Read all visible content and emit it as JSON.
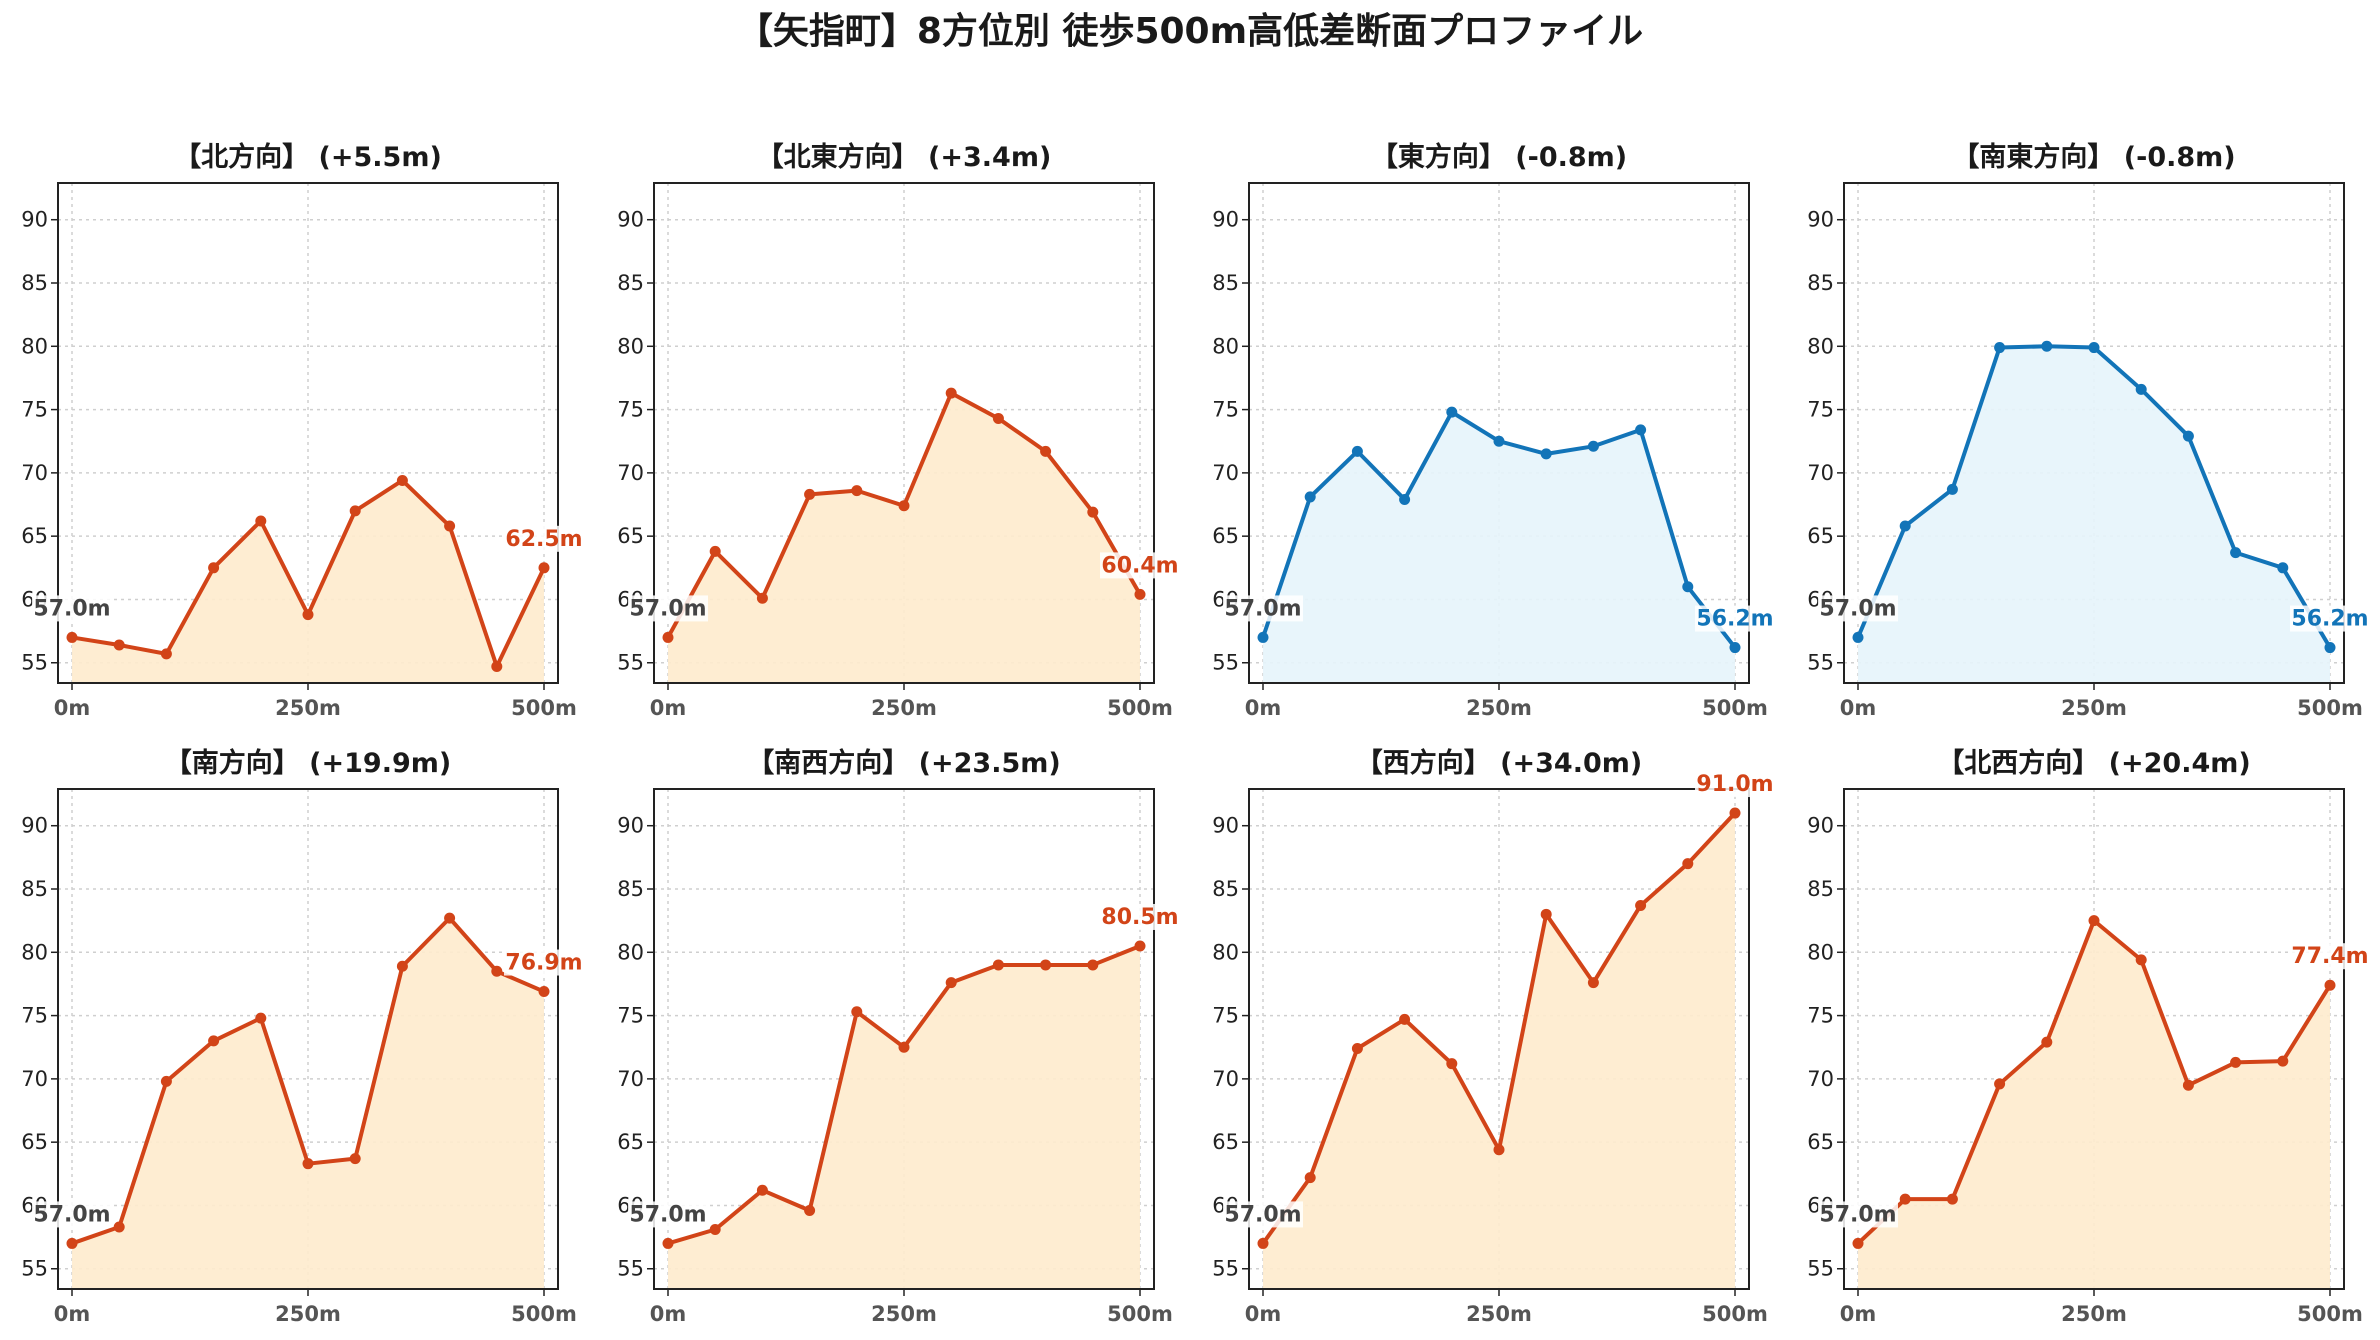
{
  "title": "【矢指町】8方位別 徒歩500m高低差断面プロファイル",
  "colors": {
    "uphill_line": "#d24418",
    "uphill_fill": "#feebcd",
    "downhill_line": "#1274b8",
    "downhill_fill": "#e6f4fb",
    "start_label": "#444444"
  },
  "chart_data": [
    {
      "type": "area",
      "title": "【北方向】 (+5.5m)",
      "trend": "up",
      "x": [
        0,
        50,
        100,
        150,
        200,
        250,
        300,
        350,
        400,
        450,
        500
      ],
      "y": [
        57.0,
        56.4,
        55.7,
        62.5,
        66.2,
        58.8,
        67.0,
        69.4,
        65.8,
        54.7,
        62.5
      ],
      "start_label": "57.0m",
      "end_label": "62.5m",
      "xticks": [
        "0m",
        "250m",
        "500m"
      ],
      "yticks": [
        55,
        60,
        65,
        70,
        75,
        80,
        85,
        90
      ],
      "ylim": [
        53.4,
        92.9
      ],
      "grid": true
    },
    {
      "type": "area",
      "title": "【北東方向】 (+3.4m)",
      "trend": "up",
      "x": [
        0,
        50,
        100,
        150,
        200,
        250,
        300,
        350,
        400,
        450,
        500
      ],
      "y": [
        57.0,
        63.8,
        60.1,
        68.3,
        68.6,
        67.4,
        76.3,
        74.3,
        71.7,
        66.9,
        60.4
      ],
      "start_label": "57.0m",
      "end_label": "60.4m",
      "xticks": [
        "0m",
        "250m",
        "500m"
      ],
      "yticks": [
        55,
        60,
        65,
        70,
        75,
        80,
        85,
        90
      ],
      "ylim": [
        53.4,
        92.9
      ],
      "grid": true
    },
    {
      "type": "area",
      "title": "【東方向】 (-0.8m)",
      "trend": "down",
      "x": [
        0,
        50,
        100,
        150,
        200,
        250,
        300,
        350,
        400,
        450,
        500
      ],
      "y": [
        57.0,
        68.1,
        71.7,
        67.9,
        74.8,
        72.5,
        71.5,
        72.1,
        73.4,
        61.0,
        56.2
      ],
      "start_label": "57.0m",
      "end_label": "56.2m",
      "xticks": [
        "0m",
        "250m",
        "500m"
      ],
      "yticks": [
        55,
        60,
        65,
        70,
        75,
        80,
        85,
        90
      ],
      "ylim": [
        53.4,
        92.9
      ],
      "grid": true
    },
    {
      "type": "area",
      "title": "【南東方向】 (-0.8m)",
      "trend": "down",
      "x": [
        0,
        50,
        100,
        150,
        200,
        250,
        300,
        350,
        400,
        450,
        500
      ],
      "y": [
        57.0,
        65.8,
        68.7,
        79.9,
        80.0,
        79.9,
        76.6,
        72.9,
        63.7,
        62.5,
        56.2
      ],
      "start_label": "57.0m",
      "end_label": "56.2m",
      "xticks": [
        "0m",
        "250m",
        "500m"
      ],
      "yticks": [
        55,
        60,
        65,
        70,
        75,
        80,
        85,
        90
      ],
      "ylim": [
        53.4,
        92.9
      ],
      "grid": true
    },
    {
      "type": "area",
      "title": "【南方向】 (+19.9m)",
      "trend": "up",
      "x": [
        0,
        50,
        100,
        150,
        200,
        250,
        300,
        350,
        400,
        450,
        500
      ],
      "y": [
        57.0,
        58.3,
        69.8,
        73.0,
        74.8,
        63.3,
        63.7,
        78.9,
        82.7,
        78.5,
        76.9
      ],
      "start_label": "57.0m",
      "end_label": "76.9m",
      "xticks": [
        "0m",
        "250m",
        "500m"
      ],
      "yticks": [
        55,
        60,
        65,
        70,
        75,
        80,
        85,
        90
      ],
      "ylim": [
        53.4,
        92.9
      ],
      "grid": true
    },
    {
      "type": "area",
      "title": "【南西方向】 (+23.5m)",
      "trend": "up",
      "x": [
        0,
        50,
        100,
        150,
        200,
        250,
        300,
        350,
        400,
        450,
        500
      ],
      "y": [
        57.0,
        58.1,
        61.2,
        59.6,
        75.3,
        72.5,
        77.6,
        79.0,
        79.0,
        79.0,
        80.5
      ],
      "start_label": "57.0m",
      "end_label": "80.5m",
      "xticks": [
        "0m",
        "250m",
        "500m"
      ],
      "yticks": [
        55,
        60,
        65,
        70,
        75,
        80,
        85,
        90
      ],
      "ylim": [
        53.4,
        92.9
      ],
      "grid": true
    },
    {
      "type": "area",
      "title": "【西方向】 (+34.0m)",
      "trend": "up",
      "x": [
        0,
        50,
        100,
        150,
        200,
        250,
        300,
        350,
        400,
        450,
        500
      ],
      "y": [
        57.0,
        62.2,
        72.4,
        74.7,
        71.2,
        64.4,
        83.0,
        77.6,
        83.7,
        87.0,
        91.0
      ],
      "start_label": "57.0m",
      "end_label": "91.0m",
      "xticks": [
        "0m",
        "250m",
        "500m"
      ],
      "yticks": [
        55,
        60,
        65,
        70,
        75,
        80,
        85,
        90
      ],
      "ylim": [
        53.4,
        92.9
      ],
      "grid": true
    },
    {
      "type": "area",
      "title": "【北西方向】 (+20.4m)",
      "trend": "up",
      "x": [
        0,
        50,
        100,
        150,
        200,
        250,
        300,
        350,
        400,
        450,
        500
      ],
      "y": [
        57.0,
        60.5,
        60.5,
        69.6,
        72.9,
        82.5,
        79.4,
        69.5,
        71.3,
        71.4,
        77.4
      ],
      "start_label": "57.0m",
      "end_label": "77.4m",
      "xticks": [
        "0m",
        "250m",
        "500m"
      ],
      "yticks": [
        55,
        60,
        65,
        70,
        75,
        80,
        85,
        90
      ],
      "ylim": [
        53.4,
        92.9
      ],
      "grid": true
    }
  ]
}
